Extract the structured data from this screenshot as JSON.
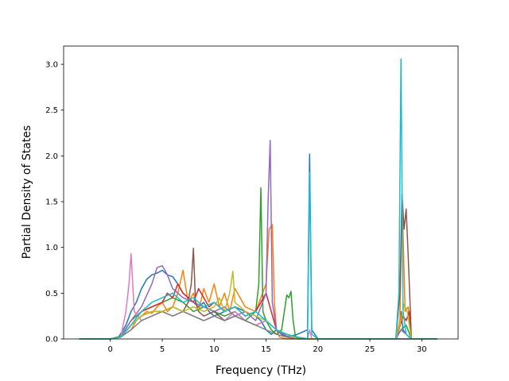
{
  "chart_data": {
    "type": "line",
    "title": "",
    "xlabel": "Frequency (THz)",
    "ylabel": "Partial Density of States",
    "xlim": [
      -4.5,
      33.5
    ],
    "ylim": [
      0,
      3.2
    ],
    "xticks": [
      0,
      5,
      10,
      15,
      20,
      25,
      30
    ],
    "yticks": [
      0.0,
      0.5,
      1.0,
      1.5,
      2.0,
      2.5,
      3.0
    ],
    "xtick_labels": [
      "0",
      "5",
      "10",
      "15",
      "20",
      "25",
      "30"
    ],
    "ytick_labels": [
      "0.0",
      "0.5",
      "1.0",
      "1.5",
      "2.0",
      "2.5",
      "3.0"
    ],
    "grid": false,
    "legend": "none",
    "series": [
      {
        "color": "#1f77b4",
        "x": [
          -3,
          0,
          0.8,
          1.5,
          2,
          2.5,
          3,
          3.5,
          4,
          4.5,
          5,
          5.5,
          6,
          6.5,
          7,
          7.5,
          8,
          8.5,
          9,
          9.5,
          10,
          11,
          12,
          13,
          14,
          14.5,
          15,
          15.5,
          16,
          16.5,
          17,
          18,
          19,
          19.2,
          19.4,
          20,
          27.5,
          27.8,
          28,
          28.2,
          28.5,
          29,
          31.5
        ],
        "y": [
          0,
          0,
          0.02,
          0.15,
          0.3,
          0.4,
          0.55,
          0.65,
          0.7,
          0.72,
          0.75,
          0.7,
          0.68,
          0.6,
          0.5,
          0.45,
          0.4,
          0.35,
          0.4,
          0.3,
          0.25,
          0.3,
          0.35,
          0.3,
          0.25,
          0.2,
          0.1,
          0.05,
          0.1,
          0.05,
          0.02,
          0.05,
          0.1,
          2.02,
          0.1,
          0,
          0,
          0.1,
          0.3,
          0.1,
          0.05,
          0,
          0
        ]
      },
      {
        "color": "#ff7f0e",
        "x": [
          -3,
          0,
          1,
          2,
          2.5,
          3,
          3.5,
          4,
          4.5,
          5,
          5.5,
          6,
          6.5,
          7,
          7.5,
          8,
          8.5,
          9,
          9.5,
          10,
          10.5,
          11,
          11.5,
          12,
          13,
          14,
          15,
          15.3,
          15.6,
          15.8,
          16,
          16.3,
          17,
          19,
          27.5,
          27.9,
          28.1,
          28.4,
          28.7,
          29,
          31.5
        ],
        "y": [
          0,
          0,
          0.02,
          0.1,
          0.2,
          0.25,
          0.3,
          0.28,
          0.35,
          0.4,
          0.3,
          0.35,
          0.5,
          0.75,
          0.4,
          0.5,
          0.3,
          0.55,
          0.4,
          0.6,
          0.35,
          0.5,
          0.3,
          0.55,
          0.35,
          0.3,
          0.6,
          1.2,
          1.25,
          0.4,
          0.1,
          0.02,
          0,
          0,
          0,
          0.2,
          1.58,
          0.3,
          0.35,
          0,
          0
        ]
      },
      {
        "color": "#2ca02c",
        "x": [
          -3,
          0,
          1,
          2,
          3,
          4,
          5,
          6,
          7,
          8,
          9,
          10,
          11,
          12,
          13,
          14,
          14.3,
          14.5,
          14.7,
          15,
          15.5,
          16,
          16.5,
          17,
          17.2,
          17.4,
          17.6,
          17.8,
          18,
          19,
          27.5,
          28,
          28.5,
          29,
          31.5
        ],
        "y": [
          0,
          0,
          0.03,
          0.2,
          0.3,
          0.35,
          0.4,
          0.45,
          0.4,
          0.3,
          0.35,
          0.3,
          0.25,
          0.3,
          0.2,
          0.3,
          0.6,
          1.65,
          0.3,
          0.2,
          0.1,
          0.05,
          0.1,
          0.48,
          0.45,
          0.52,
          0.2,
          0.05,
          0,
          0,
          0,
          0.1,
          0.15,
          0,
          0
        ]
      },
      {
        "color": "#d62728",
        "x": [
          -3,
          0,
          1,
          2,
          3,
          4,
          5,
          5.5,
          6,
          6.5,
          7,
          7.5,
          8,
          8.5,
          9,
          9.5,
          10,
          11,
          12,
          13,
          14,
          15,
          15.5,
          16,
          17,
          18,
          19,
          27.5,
          28.2,
          28.5,
          28.8,
          29,
          31.5
        ],
        "y": [
          0,
          0,
          0.02,
          0.15,
          0.3,
          0.35,
          0.4,
          0.5,
          0.45,
          0.6,
          0.5,
          0.45,
          0.4,
          0.55,
          0.45,
          0.35,
          0.4,
          0.3,
          0.35,
          0.25,
          0.3,
          0.5,
          0.3,
          0.1,
          0.05,
          0.02,
          0,
          0,
          0.25,
          0.2,
          0.3,
          0,
          0
        ]
      },
      {
        "color": "#9467bd",
        "x": [
          -3,
          0,
          1,
          2,
          3,
          4,
          4.5,
          5,
          5.5,
          6,
          6.5,
          7,
          8,
          9,
          10,
          11,
          12,
          13,
          14,
          15,
          15.2,
          15.4,
          15.6,
          16,
          17,
          18,
          19,
          27.5,
          28,
          28.5,
          29,
          31.5
        ],
        "y": [
          0,
          0,
          0.02,
          0.2,
          0.35,
          0.6,
          0.78,
          0.8,
          0.7,
          0.55,
          0.5,
          0.45,
          0.4,
          0.35,
          0.3,
          0.35,
          0.25,
          0.3,
          0.2,
          0.5,
          1.5,
          2.17,
          0.4,
          0.1,
          0.03,
          0.02,
          0,
          0,
          0.1,
          0.05,
          0,
          0
        ]
      },
      {
        "color": "#8c564b",
        "x": [
          -3,
          0,
          1,
          2,
          3,
          4,
          5,
          6,
          7,
          7.5,
          7.8,
          8,
          8.2,
          8.5,
          9,
          10,
          11,
          12,
          13,
          14,
          15,
          16,
          17,
          18,
          19,
          27.5,
          27.9,
          28.1,
          28.3,
          28.5,
          28.7,
          29,
          31.5
        ],
        "y": [
          0,
          0,
          0.02,
          0.15,
          0.25,
          0.3,
          0.3,
          0.35,
          0.3,
          0.4,
          0.6,
          0.99,
          0.4,
          0.3,
          0.25,
          0.3,
          0.2,
          0.25,
          0.2,
          0.15,
          0.2,
          0.1,
          0.05,
          0.02,
          0,
          0,
          0.5,
          1.58,
          1.2,
          1.42,
          0.9,
          0,
          0
        ]
      },
      {
        "color": "#e377c2",
        "x": [
          -3,
          0,
          1,
          1.5,
          1.8,
          2,
          2.3,
          2.7,
          3,
          4,
          5,
          6,
          7,
          8,
          9,
          10,
          11,
          12,
          13,
          14,
          15,
          16,
          17,
          18,
          19,
          19.2,
          19.4,
          20,
          31.5
        ],
        "y": [
          0,
          0,
          0.02,
          0.3,
          0.6,
          0.93,
          0.3,
          0.25,
          0.2,
          0.25,
          0.3,
          0.25,
          0.3,
          0.25,
          0.2,
          0.25,
          0.2,
          0.3,
          0.2,
          0.15,
          0.2,
          0.1,
          0.05,
          0.02,
          0,
          0.1,
          0,
          0,
          0
        ]
      },
      {
        "color": "#7f7f7f",
        "x": [
          -3,
          0,
          1,
          2,
          3,
          4,
          5,
          6,
          7,
          8,
          9,
          10,
          11,
          12,
          13,
          14,
          15,
          16,
          17,
          18,
          31.5
        ],
        "y": [
          0,
          0,
          0.02,
          0.1,
          0.2,
          0.25,
          0.3,
          0.25,
          0.3,
          0.25,
          0.2,
          0.25,
          0.2,
          0.25,
          0.2,
          0.15,
          0.1,
          0.05,
          0.02,
          0,
          0
        ]
      },
      {
        "color": "#bcbd22",
        "x": [
          -3,
          0,
          1,
          2,
          3,
          4,
          5,
          6,
          7,
          8,
          9,
          10,
          10.5,
          11,
          11.5,
          11.8,
          12,
          12.5,
          13,
          14,
          15,
          16,
          17,
          18,
          27.5,
          28,
          28.3,
          28.6,
          29,
          31.5
        ],
        "y": [
          0,
          0,
          0.02,
          0.15,
          0.25,
          0.3,
          0.3,
          0.35,
          0.3,
          0.35,
          0.3,
          0.35,
          0.45,
          0.3,
          0.5,
          0.74,
          0.4,
          0.35,
          0.3,
          0.25,
          0.2,
          0.1,
          0.05,
          0,
          0,
          0.2,
          0.38,
          0.3,
          0,
          0
        ]
      },
      {
        "color": "#17becf",
        "x": [
          -3,
          0,
          1,
          2,
          3,
          4,
          5,
          6,
          7,
          8,
          9,
          10,
          11,
          12,
          13,
          14,
          15,
          16,
          17,
          18,
          19,
          19.2,
          19.4,
          20,
          27.5,
          27.8,
          28,
          28.2,
          28.5,
          29,
          31.5
        ],
        "y": [
          0,
          0,
          0.02,
          0.15,
          0.3,
          0.4,
          0.45,
          0.5,
          0.4,
          0.45,
          0.35,
          0.4,
          0.3,
          0.35,
          0.25,
          0.3,
          0.2,
          0.1,
          0.05,
          0.02,
          0,
          1.82,
          0.05,
          0,
          0,
          0.5,
          3.06,
          0.3,
          0.05,
          0,
          0
        ]
      }
    ]
  }
}
